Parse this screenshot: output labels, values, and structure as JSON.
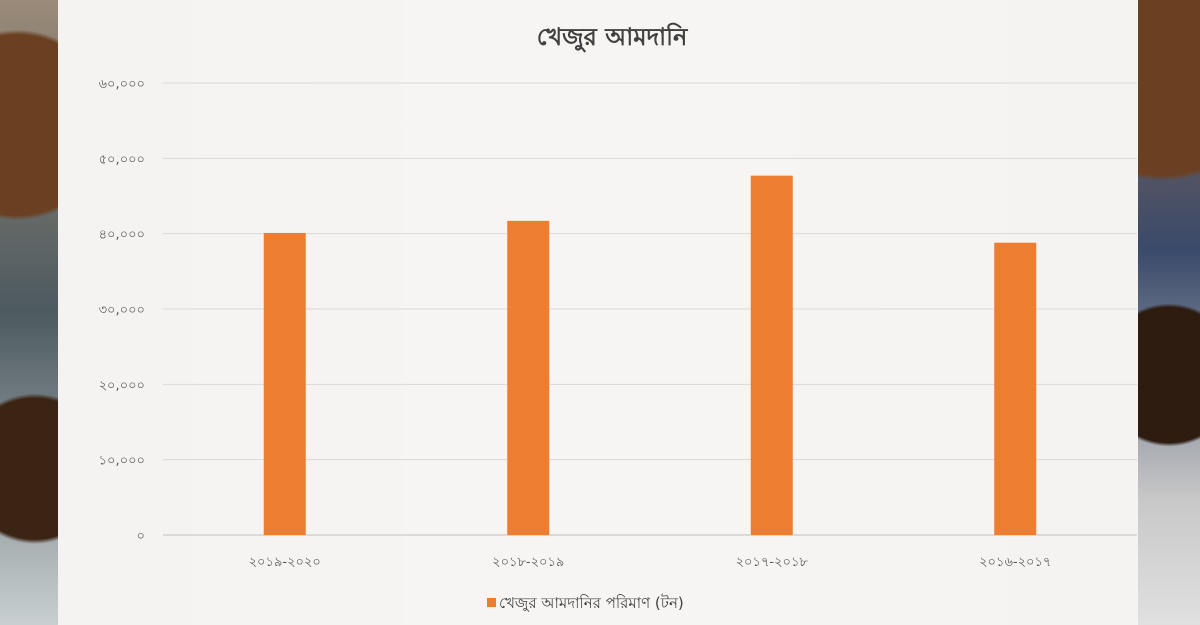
{
  "chart_data": {
    "type": "bar",
    "title": "খেজুর আমদানি",
    "categories": [
      "২০১৯-২০২০",
      "২০১৮-২০১৯",
      "২০১৭-২০১৮",
      "২০১৬-২০১৭"
    ],
    "series": [
      {
        "name": "খেজুর আমদানির পরিমাণ (টন)",
        "values": [
          40100,
          41700,
          47700,
          38800
        ],
        "color": "#ED7D31"
      }
    ],
    "yticks": [
      "০",
      "১০,০০০",
      "২০,০০০",
      "৩০,০০০",
      "৪০,০০০",
      "৫০,০০০",
      "৬০,০০০"
    ],
    "ylim": [
      0,
      60000
    ],
    "grid": true,
    "legend": "bottom"
  }
}
